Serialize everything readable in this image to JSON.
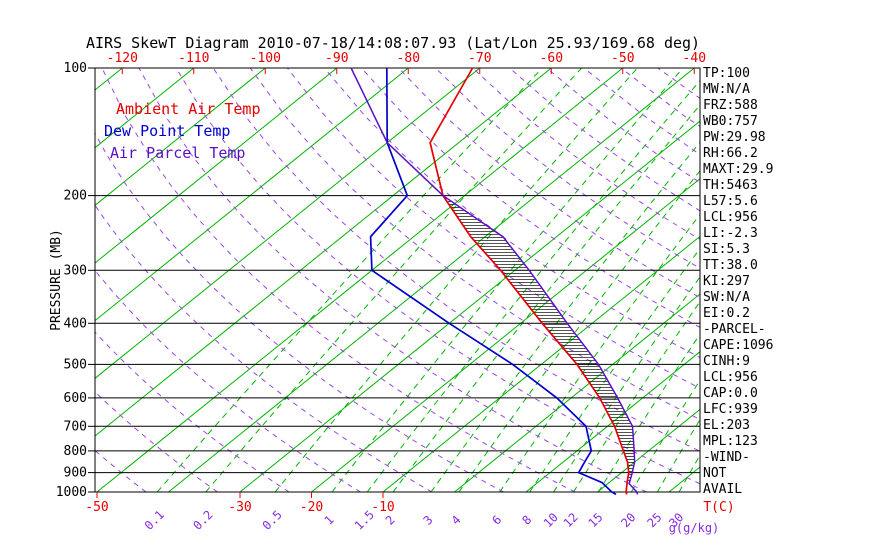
{
  "title": "AIRS SkewT Diagram 2010-07-18/14:08:07.93 (Lat/Lon 25.93/169.68 deg)",
  "legend": [
    {
      "label": "Ambient Air Temp",
      "color": "#e60000"
    },
    {
      "label": "Dew Point Temp",
      "color": "#0000cd"
    },
    {
      "label": "Air Parcel Temp",
      "color": "#5a10c8"
    }
  ],
  "stats": [
    "TP:100",
    "MW:N/A",
    "FRZ:588",
    "WB0:757",
    "PW:29.98",
    "RH:66.2",
    "MAXT:29.9",
    "TH:5463",
    "L57:5.6",
    "LCL:956",
    "LI:-2.3",
    "SI:5.3",
    "TT:38.0",
    "KI:297",
    "SW:N/A",
    "EI:0.2",
    "-PARCEL-",
    "CAPE:1096",
    "CINH:9",
    "LCL:956",
    "CAP:0.0",
    "LFC:939",
    "EL:203",
    "MPL:123",
    "-WIND-",
    "NOT",
    "AVAIL"
  ],
  "axes": {
    "pressure_label": "PRESSURE (MB)",
    "pressure_ticks_mb": [
      100,
      200,
      300,
      400,
      500,
      600,
      700,
      800,
      900,
      1000
    ],
    "top_temp_ticks_c": [
      -120,
      -110,
      -100,
      -90,
      -80,
      -70,
      -60,
      -50,
      -40
    ],
    "bottom_temp_ticks_c": [
      -50,
      -30,
      -20,
      -10
    ],
    "temp_unit_label": "T(C)",
    "mixing_ratio_values_gkg": [
      0.1,
      0.2,
      0.5,
      1,
      1.5,
      2,
      3,
      4,
      6,
      8,
      10,
      12,
      15,
      20,
      25,
      30
    ],
    "mixing_ratio_unit_label": "g(g/kg)"
  },
  "chart_data": {
    "type": "line",
    "title": "AIRS SkewT Diagram",
    "x_axis": {
      "label": "Temperature (C)",
      "skewed": true
    },
    "y_axis": {
      "label": "Pressure (MB)",
      "scale": "log",
      "range": [
        100,
        1013
      ]
    },
    "isotherms_c": {
      "min": -160,
      "max": 40,
      "step": 10
    },
    "dry_adiabats_theta_k": {
      "min": 230,
      "max": 440,
      "step": 10
    },
    "series": [
      {
        "name": "Ambient Air Temp",
        "color": "#e60000",
        "points_mb_c": [
          [
            1013,
            24.5
          ],
          [
            1000,
            24
          ],
          [
            950,
            22.5
          ],
          [
            900,
            21
          ],
          [
            850,
            19
          ],
          [
            800,
            16.5
          ],
          [
            700,
            11
          ],
          [
            600,
            4
          ],
          [
            500,
            -5
          ],
          [
            400,
            -17
          ],
          [
            300,
            -32
          ],
          [
            250,
            -42
          ],
          [
            200,
            -53
          ],
          [
            150,
            -64
          ],
          [
            100,
            -71
          ]
        ]
      },
      {
        "name": "Dew Point Temp",
        "color": "#0000cd",
        "points_mb_c": [
          [
            1013,
            23
          ],
          [
            1000,
            22
          ],
          [
            950,
            19
          ],
          [
            900,
            14
          ],
          [
            850,
            13
          ],
          [
            800,
            12
          ],
          [
            700,
            7
          ],
          [
            600,
            -2
          ],
          [
            500,
            -14
          ],
          [
            400,
            -30
          ],
          [
            300,
            -50
          ],
          [
            250,
            -56
          ],
          [
            200,
            -58
          ],
          [
            150,
            -70
          ],
          [
            100,
            -83
          ]
        ]
      },
      {
        "name": "Air Parcel Temp",
        "color": "#5a10c8",
        "points_mb_c": [
          [
            1013,
            26
          ],
          [
            1000,
            25.5
          ],
          [
            956,
            23
          ],
          [
            900,
            21.5
          ],
          [
            850,
            20
          ],
          [
            800,
            18
          ],
          [
            700,
            13.5
          ],
          [
            600,
            6.5
          ],
          [
            500,
            -2
          ],
          [
            400,
            -13.5
          ],
          [
            300,
            -28
          ],
          [
            250,
            -37.5
          ],
          [
            200,
            -53
          ],
          [
            150,
            -70
          ],
          [
            100,
            -88
          ]
        ]
      }
    ],
    "cape_region": {
      "lfc_mb": 939,
      "el_mb": 203,
      "style": "horizontal-hatch"
    }
  },
  "colors": {
    "isotherm": "#00b400",
    "mixing_ratio": "#00b400",
    "dry_adiabat": "#9a45e6",
    "pressure_line": "#000000",
    "hatch": "#1c1c1c",
    "axis_text": "#000000",
    "temp_axis_text": "#e60000",
    "mixing_text": "#8a2be2"
  }
}
